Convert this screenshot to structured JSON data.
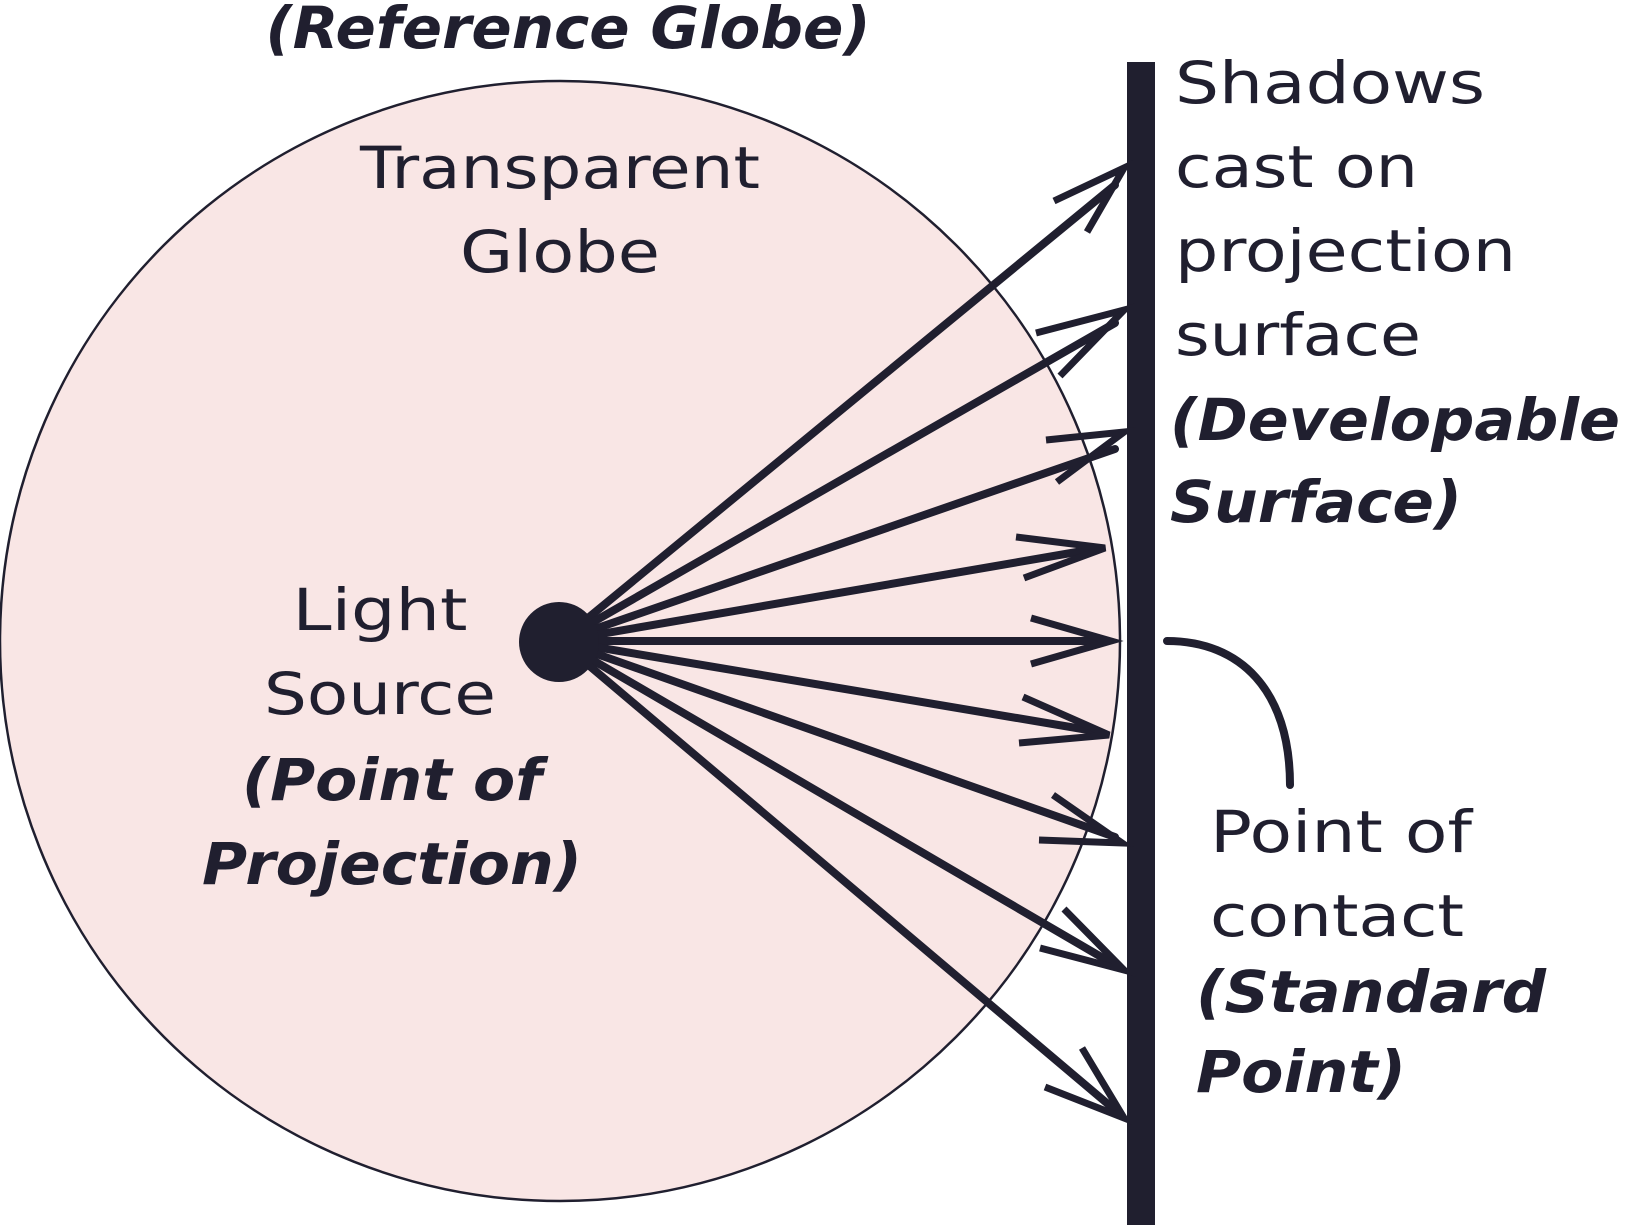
{
  "colors": {
    "ink": "#201f2f",
    "globe_fill": "#f9e6e5",
    "background": "#ffffff"
  },
  "labels": {
    "reference_globe": "(Reference Globe)",
    "transparent_globe": [
      "Transparent",
      "Globe"
    ],
    "light_source": [
      "Light",
      "Source"
    ],
    "point_of_projection": [
      "(Point of",
      "Projection)"
    ],
    "shadows": [
      "Shadows",
      "cast on",
      "projection",
      "surface"
    ],
    "developable_surface": [
      "(Developable",
      "Surface)"
    ],
    "point_of_contact": [
      "Point of",
      "contact"
    ],
    "standard_point": [
      "(Standard",
      "Point)"
    ]
  }
}
